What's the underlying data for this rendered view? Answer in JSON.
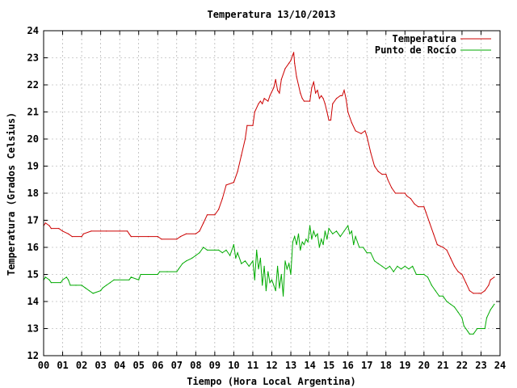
{
  "chart_data": {
    "type": "line",
    "title": "Temperatura 13/10/2013",
    "xlabel": "Tiempo (Hora Local Argentina)",
    "ylabel": "Temperatura (Grados Celsius)",
    "xlim": [
      0,
      24
    ],
    "ylim": [
      12,
      24
    ],
    "x_ticks": [
      "00",
      "01",
      "02",
      "03",
      "04",
      "05",
      "06",
      "07",
      "08",
      "09",
      "10",
      "11",
      "12",
      "13",
      "14",
      "15",
      "16",
      "17",
      "18",
      "19",
      "20",
      "21",
      "22",
      "23",
      "24"
    ],
    "y_ticks": [
      12,
      13,
      14,
      15,
      16,
      17,
      18,
      19,
      20,
      21,
      22,
      23,
      24
    ],
    "grid": true,
    "legend_position": "top-right",
    "series": [
      {
        "name": "Temperatura",
        "color": "#cc0000",
        "points": [
          [
            0.0,
            16.8
          ],
          [
            0.1,
            16.9
          ],
          [
            0.3,
            16.8
          ],
          [
            0.4,
            16.7
          ],
          [
            0.8,
            16.7
          ],
          [
            1.0,
            16.6
          ],
          [
            1.3,
            16.5
          ],
          [
            1.5,
            16.4
          ],
          [
            2.0,
            16.4
          ],
          [
            2.1,
            16.5
          ],
          [
            2.5,
            16.6
          ],
          [
            3.0,
            16.6
          ],
          [
            3.3,
            16.6
          ],
          [
            4.0,
            16.6
          ],
          [
            4.4,
            16.6
          ],
          [
            4.5,
            16.5
          ],
          [
            4.6,
            16.4
          ],
          [
            5.5,
            16.4
          ],
          [
            6.0,
            16.4
          ],
          [
            6.2,
            16.3
          ],
          [
            7.0,
            16.3
          ],
          [
            7.2,
            16.4
          ],
          [
            7.5,
            16.5
          ],
          [
            8.0,
            16.5
          ],
          [
            8.2,
            16.6
          ],
          [
            8.4,
            16.9
          ],
          [
            8.6,
            17.2
          ],
          [
            9.0,
            17.2
          ],
          [
            9.2,
            17.4
          ],
          [
            9.4,
            17.8
          ],
          [
            9.6,
            18.3
          ],
          [
            10.0,
            18.4
          ],
          [
            10.2,
            18.8
          ],
          [
            10.4,
            19.4
          ],
          [
            10.6,
            20.0
          ],
          [
            10.7,
            20.5
          ],
          [
            11.0,
            20.5
          ],
          [
            11.1,
            21.0
          ],
          [
            11.3,
            21.3
          ],
          [
            11.4,
            21.4
          ],
          [
            11.5,
            21.3
          ],
          [
            11.6,
            21.5
          ],
          [
            11.8,
            21.4
          ],
          [
            11.9,
            21.6
          ],
          [
            12.1,
            21.9
          ],
          [
            12.2,
            22.2
          ],
          [
            12.3,
            21.8
          ],
          [
            12.4,
            21.7
          ],
          [
            12.5,
            22.2
          ],
          [
            12.7,
            22.6
          ],
          [
            12.9,
            22.8
          ],
          [
            13.0,
            22.9
          ],
          [
            13.1,
            23.1
          ],
          [
            13.15,
            23.2
          ],
          [
            13.2,
            22.8
          ],
          [
            13.3,
            22.3
          ],
          [
            13.5,
            21.7
          ],
          [
            13.6,
            21.5
          ],
          [
            13.7,
            21.4
          ],
          [
            14.0,
            21.4
          ],
          [
            14.1,
            21.9
          ],
          [
            14.2,
            22.1
          ],
          [
            14.3,
            21.7
          ],
          [
            14.4,
            21.8
          ],
          [
            14.5,
            21.5
          ],
          [
            14.6,
            21.6
          ],
          [
            14.7,
            21.5
          ],
          [
            14.8,
            21.3
          ],
          [
            14.9,
            21.0
          ],
          [
            15.0,
            20.7
          ],
          [
            15.1,
            20.7
          ],
          [
            15.2,
            21.3
          ],
          [
            15.4,
            21.5
          ],
          [
            15.6,
            21.6
          ],
          [
            15.7,
            21.6
          ],
          [
            15.8,
            21.8
          ],
          [
            15.9,
            21.5
          ],
          [
            16.0,
            21.0
          ],
          [
            16.2,
            20.6
          ],
          [
            16.4,
            20.3
          ],
          [
            16.7,
            20.2
          ],
          [
            16.9,
            20.3
          ],
          [
            17.0,
            20.1
          ],
          [
            17.2,
            19.5
          ],
          [
            17.4,
            19.0
          ],
          [
            17.6,
            18.8
          ],
          [
            17.8,
            18.7
          ],
          [
            18.0,
            18.7
          ],
          [
            18.1,
            18.5
          ],
          [
            18.3,
            18.2
          ],
          [
            18.5,
            18.0
          ],
          [
            18.8,
            18.0
          ],
          [
            19.0,
            18.0
          ],
          [
            19.1,
            17.9
          ],
          [
            19.3,
            17.8
          ],
          [
            19.5,
            17.6
          ],
          [
            19.7,
            17.5
          ],
          [
            20.0,
            17.5
          ],
          [
            20.1,
            17.3
          ],
          [
            20.3,
            16.9
          ],
          [
            20.5,
            16.5
          ],
          [
            20.7,
            16.1
          ],
          [
            21.0,
            16.0
          ],
          [
            21.2,
            15.9
          ],
          [
            21.4,
            15.6
          ],
          [
            21.6,
            15.3
          ],
          [
            21.8,
            15.1
          ],
          [
            22.0,
            15.0
          ],
          [
            22.2,
            14.7
          ],
          [
            22.4,
            14.4
          ],
          [
            22.6,
            14.3
          ],
          [
            22.9,
            14.3
          ],
          [
            23.0,
            14.3
          ],
          [
            23.2,
            14.4
          ],
          [
            23.4,
            14.6
          ],
          [
            23.5,
            14.8
          ],
          [
            23.7,
            14.9
          ]
        ]
      },
      {
        "name": "Punto de Rocío",
        "color": "#00aa00",
        "points": [
          [
            0.0,
            14.8
          ],
          [
            0.1,
            14.9
          ],
          [
            0.3,
            14.8
          ],
          [
            0.4,
            14.7
          ],
          [
            0.9,
            14.7
          ],
          [
            1.0,
            14.8
          ],
          [
            1.2,
            14.9
          ],
          [
            1.3,
            14.8
          ],
          [
            1.4,
            14.6
          ],
          [
            1.7,
            14.6
          ],
          [
            2.0,
            14.6
          ],
          [
            2.2,
            14.5
          ],
          [
            2.4,
            14.4
          ],
          [
            2.6,
            14.3
          ],
          [
            3.0,
            14.4
          ],
          [
            3.1,
            14.5
          ],
          [
            3.3,
            14.6
          ],
          [
            3.5,
            14.7
          ],
          [
            3.7,
            14.8
          ],
          [
            4.5,
            14.8
          ],
          [
            4.6,
            14.9
          ],
          [
            5.0,
            14.8
          ],
          [
            5.1,
            15.0
          ],
          [
            6.0,
            15.0
          ],
          [
            6.1,
            15.1
          ],
          [
            6.5,
            15.1
          ],
          [
            7.0,
            15.1
          ],
          [
            7.1,
            15.2
          ],
          [
            7.3,
            15.4
          ],
          [
            7.5,
            15.5
          ],
          [
            7.8,
            15.6
          ],
          [
            8.0,
            15.7
          ],
          [
            8.2,
            15.8
          ],
          [
            8.4,
            16.0
          ],
          [
            8.6,
            15.9
          ],
          [
            9.0,
            15.9
          ],
          [
            9.2,
            15.9
          ],
          [
            9.4,
            15.8
          ],
          [
            9.6,
            15.9
          ],
          [
            9.8,
            15.7
          ],
          [
            10.0,
            16.1
          ],
          [
            10.1,
            15.6
          ],
          [
            10.2,
            15.8
          ],
          [
            10.4,
            15.4
          ],
          [
            10.6,
            15.5
          ],
          [
            10.8,
            15.3
          ],
          [
            11.0,
            15.5
          ],
          [
            11.1,
            14.8
          ],
          [
            11.2,
            15.9
          ],
          [
            11.3,
            15.2
          ],
          [
            11.4,
            15.6
          ],
          [
            11.5,
            14.6
          ],
          [
            11.6,
            15.3
          ],
          [
            11.7,
            14.4
          ],
          [
            11.8,
            15.1
          ],
          [
            11.9,
            14.7
          ],
          [
            12.0,
            14.8
          ],
          [
            12.1,
            14.6
          ],
          [
            12.2,
            14.4
          ],
          [
            12.3,
            15.3
          ],
          [
            12.4,
            14.5
          ],
          [
            12.5,
            15.0
          ],
          [
            12.6,
            14.2
          ],
          [
            12.7,
            15.5
          ],
          [
            12.8,
            15.2
          ],
          [
            12.9,
            15.4
          ],
          [
            13.0,
            15.0
          ],
          [
            13.1,
            16.2
          ],
          [
            13.2,
            16.4
          ],
          [
            13.3,
            16.1
          ],
          [
            13.4,
            16.5
          ],
          [
            13.5,
            15.9
          ],
          [
            13.6,
            16.2
          ],
          [
            13.7,
            16.1
          ],
          [
            13.8,
            16.3
          ],
          [
            13.9,
            16.2
          ],
          [
            14.0,
            16.8
          ],
          [
            14.1,
            16.3
          ],
          [
            14.2,
            16.6
          ],
          [
            14.3,
            16.4
          ],
          [
            14.4,
            16.5
          ],
          [
            14.5,
            16.0
          ],
          [
            14.6,
            16.3
          ],
          [
            14.7,
            16.1
          ],
          [
            14.8,
            16.6
          ],
          [
            14.9,
            16.3
          ],
          [
            15.0,
            16.7
          ],
          [
            15.2,
            16.5
          ],
          [
            15.4,
            16.6
          ],
          [
            15.6,
            16.4
          ],
          [
            15.8,
            16.6
          ],
          [
            16.0,
            16.8
          ],
          [
            16.1,
            16.5
          ],
          [
            16.2,
            16.6
          ],
          [
            16.3,
            16.1
          ],
          [
            16.4,
            16.4
          ],
          [
            16.6,
            16.0
          ],
          [
            16.8,
            16.0
          ],
          [
            17.0,
            15.8
          ],
          [
            17.2,
            15.8
          ],
          [
            17.4,
            15.5
          ],
          [
            17.6,
            15.4
          ],
          [
            17.8,
            15.3
          ],
          [
            18.0,
            15.2
          ],
          [
            18.2,
            15.3
          ],
          [
            18.4,
            15.1
          ],
          [
            18.6,
            15.3
          ],
          [
            18.8,
            15.2
          ],
          [
            19.0,
            15.3
          ],
          [
            19.2,
            15.2
          ],
          [
            19.4,
            15.3
          ],
          [
            19.6,
            15.0
          ],
          [
            19.8,
            15.0
          ],
          [
            20.0,
            15.0
          ],
          [
            20.2,
            14.9
          ],
          [
            20.4,
            14.6
          ],
          [
            20.6,
            14.4
          ],
          [
            20.8,
            14.2
          ],
          [
            21.0,
            14.2
          ],
          [
            21.2,
            14.0
          ],
          [
            21.4,
            13.9
          ],
          [
            21.6,
            13.8
          ],
          [
            21.8,
            13.6
          ],
          [
            22.0,
            13.4
          ],
          [
            22.1,
            13.1
          ],
          [
            22.2,
            13.0
          ],
          [
            22.3,
            12.9
          ],
          [
            22.4,
            12.8
          ],
          [
            22.6,
            12.8
          ],
          [
            22.8,
            13.0
          ],
          [
            23.0,
            13.0
          ],
          [
            23.2,
            13.0
          ],
          [
            23.3,
            13.4
          ],
          [
            23.5,
            13.7
          ],
          [
            23.6,
            13.8
          ],
          [
            23.7,
            13.9
          ]
        ]
      }
    ]
  }
}
